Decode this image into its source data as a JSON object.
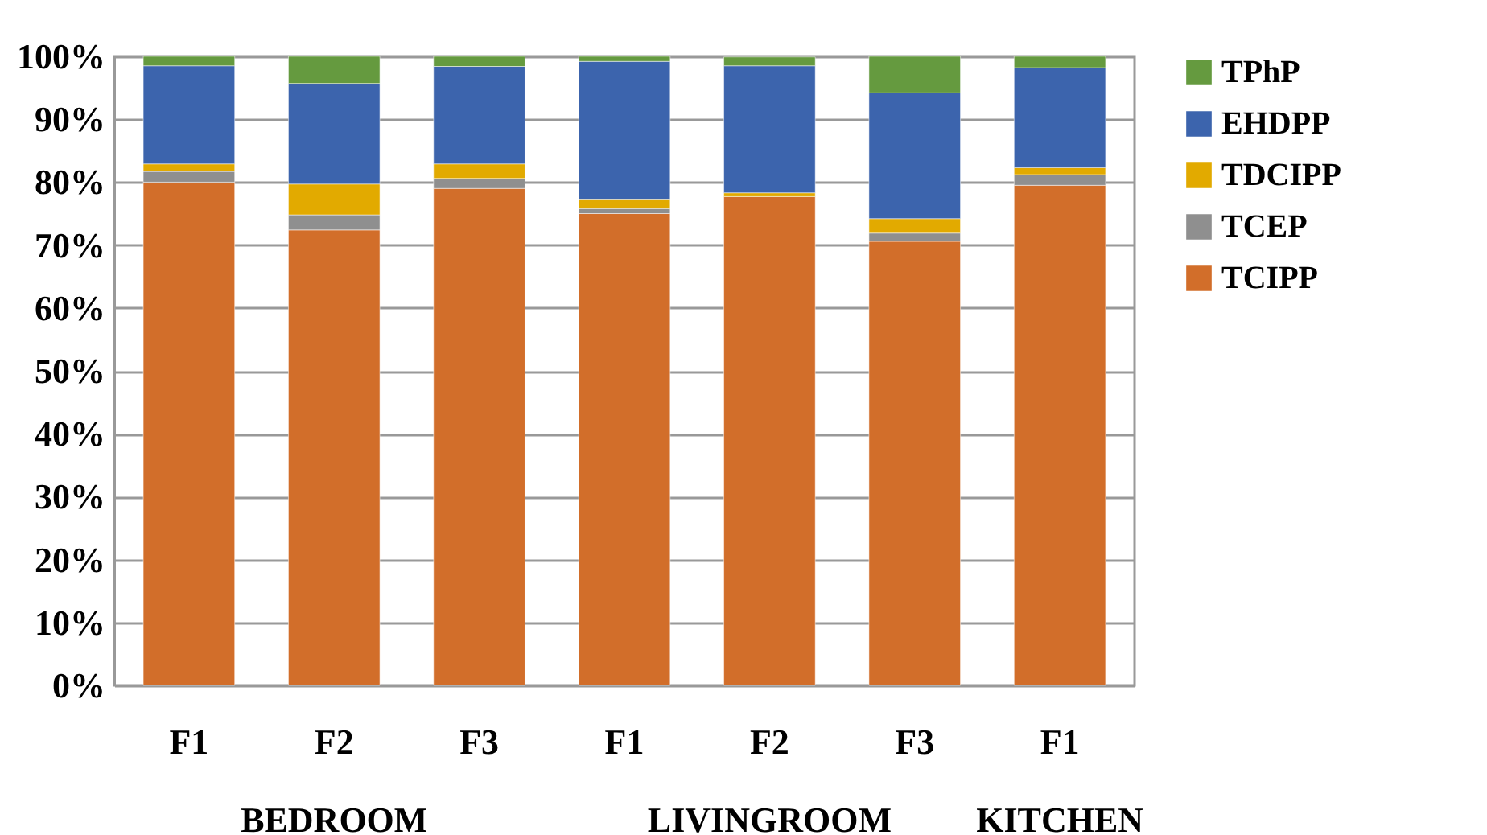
{
  "chart_data": {
    "type": "bar",
    "stacked": true,
    "categories": [
      "F1",
      "F2",
      "F3",
      "F1",
      "F2",
      "F3",
      "F1"
    ],
    "series": [
      {
        "name": "TCIPP",
        "color": "#d26e2a",
        "values": [
          80.0,
          72.4,
          79.0,
          75.0,
          77.7,
          70.6,
          79.5
        ]
      },
      {
        "name": "TCEP",
        "color": "#8f8f8f",
        "values": [
          1.7,
          2.4,
          1.6,
          0.8,
          null,
          1.3,
          1.7
        ]
      },
      {
        "name": "TDCIPP",
        "color": "#e2aa00",
        "values": [
          1.2,
          4.9,
          2.3,
          1.4,
          0.6,
          2.3,
          1.1
        ]
      },
      {
        "name": "EHDPP",
        "color": "#3c64ad",
        "values": [
          15.6,
          16.0,
          15.5,
          22.0,
          20.2,
          20.0,
          15.9
        ]
      },
      {
        "name": "TPhP",
        "color": "#659a3f",
        "values": [
          1.5,
          4.3,
          1.6,
          0.8,
          1.4,
          5.8,
          1.8
        ]
      }
    ],
    "ylim": [
      0,
      100
    ],
    "yticks": [
      {
        "value": 0,
        "label": "0%"
      },
      {
        "value": 10,
        "label": "10%"
      },
      {
        "value": 20,
        "label": "20%"
      },
      {
        "value": 30,
        "label": "30%"
      },
      {
        "value": 40,
        "label": "40%"
      },
      {
        "value": 50,
        "label": "50%"
      },
      {
        "value": 60,
        "label": "60%"
      },
      {
        "value": 70,
        "label": "70%"
      },
      {
        "value": 80,
        "label": "80%"
      },
      {
        "value": 90,
        "label": "90%"
      },
      {
        "value": 100,
        "label": "100%"
      }
    ],
    "annotations": [
      "BEDROOM",
      "LIVINGROOM",
      "KITCHEN"
    ],
    "grid": "y",
    "legend": "right"
  }
}
